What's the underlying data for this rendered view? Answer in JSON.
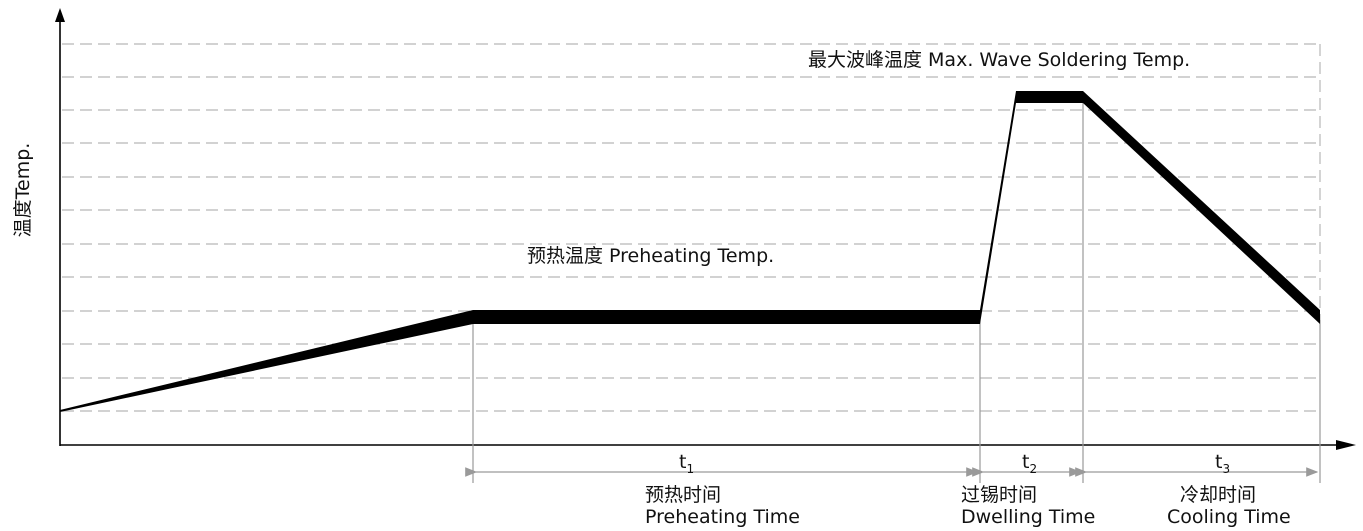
{
  "y_axis_label": "温度Temp.",
  "labels": {
    "max_wave": "最大波峰温度 Max. Wave Soldering Temp.",
    "preheating_temp": "预热温度 Preheating Temp."
  },
  "intervals": [
    {
      "symbol": "t",
      "sub": "1",
      "name_cn": "预热时间",
      "name_en": "Preheating Time"
    },
    {
      "symbol": "t",
      "sub": "2",
      "name_cn": "过锡时间",
      "name_en": "Dwelling Time"
    },
    {
      "symbol": "t",
      "sub": "3",
      "name_cn": "冷却时间",
      "name_en": "Cooling Time"
    }
  ],
  "colors": {
    "profile": "#000000",
    "grid": "#b8b8b8",
    "dimension": "#9a9a9a"
  }
}
